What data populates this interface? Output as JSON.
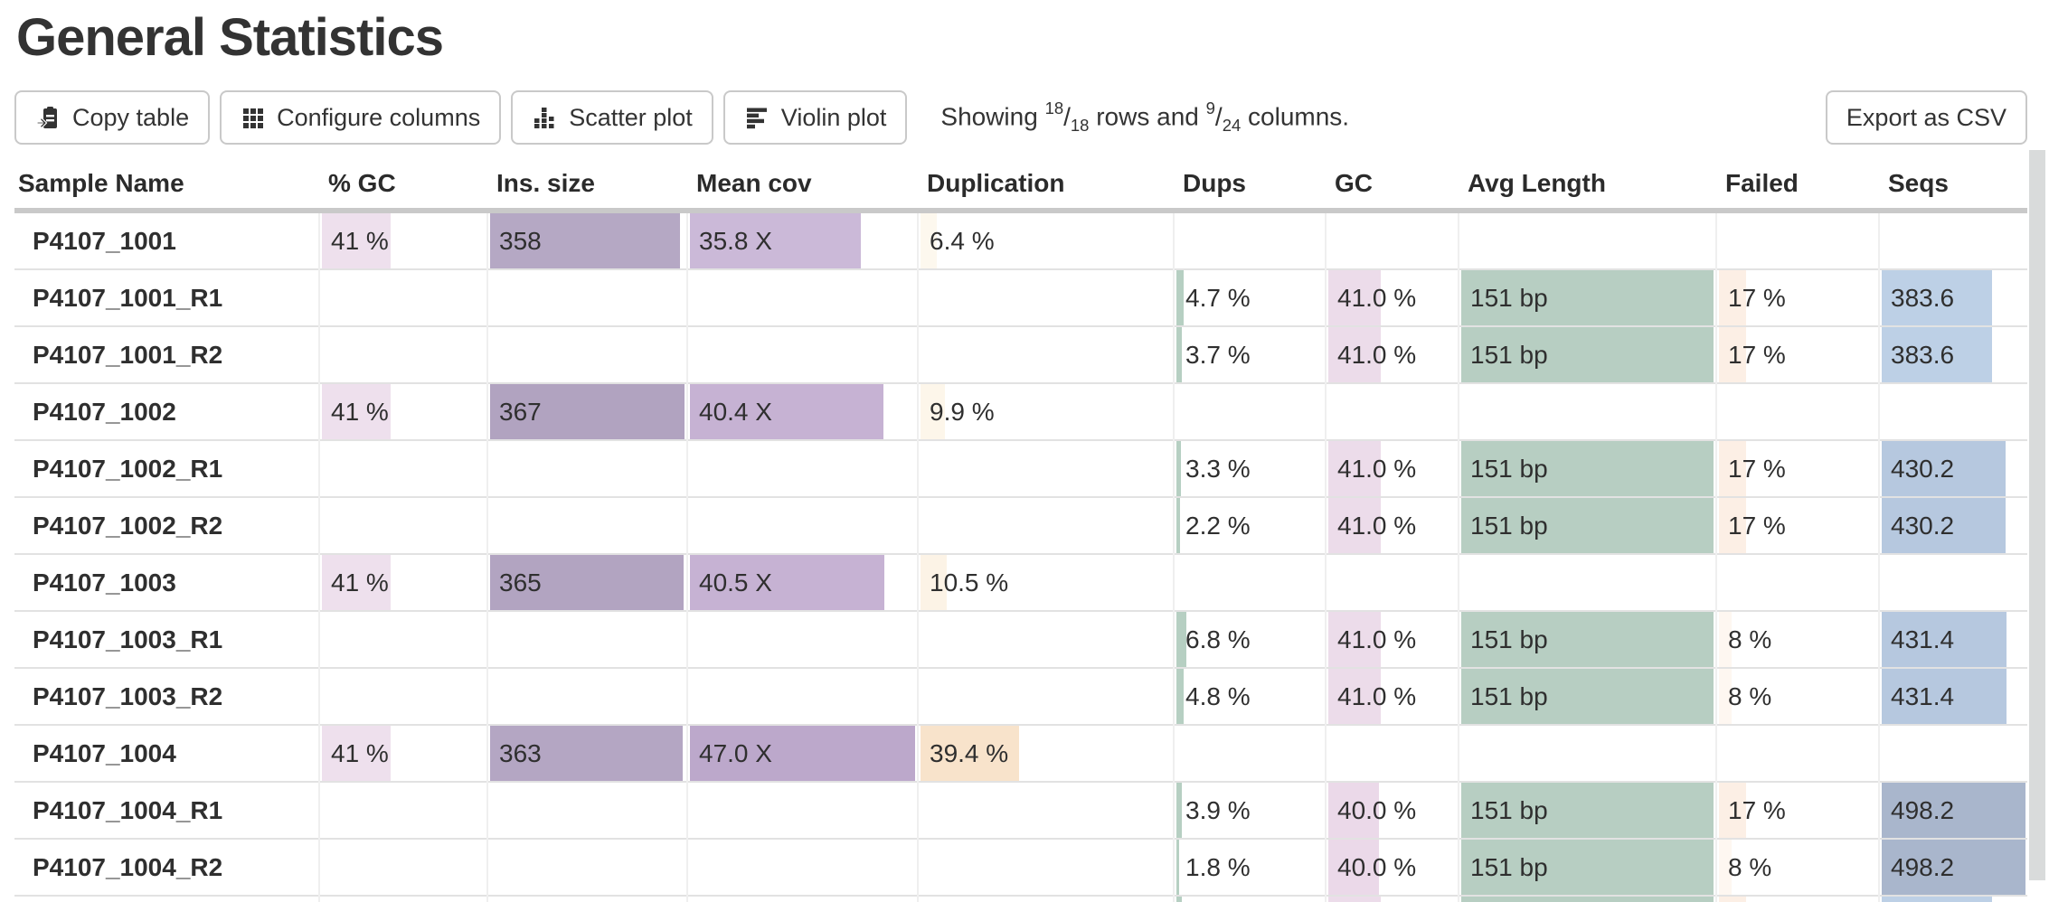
{
  "page": {
    "title": "General Statistics"
  },
  "toolbar": {
    "buttons": [
      {
        "label": "Copy table",
        "icon": "copy-icon"
      },
      {
        "label": "Configure columns",
        "icon": "grid-icon"
      },
      {
        "label": "Scatter plot",
        "icon": "scatter-chart-icon"
      },
      {
        "label": "Violin plot",
        "icon": "violin-chart-icon"
      }
    ],
    "showing": {
      "prefix": "Showing",
      "rows_shown": "18",
      "rows_total": "18",
      "mid": "rows and",
      "cols_shown": "9",
      "cols_total": "24",
      "suffix": "columns."
    },
    "export_label": "Export as CSV"
  },
  "colors": {
    "header_border": "#c9c9c9",
    "row_border": "#e2e2e2",
    "button_border": "#c9c9c9",
    "scrollbar": "#d9dbdb",
    "text": "#2f2f2f"
  },
  "table": {
    "columns": [
      {
        "key": "sample",
        "label": "Sample Name"
      },
      {
        "key": "pct_gc",
        "label": "% GC"
      },
      {
        "key": "ins_size",
        "label": "Ins. size"
      },
      {
        "key": "mean_cov",
        "label": "Mean cov"
      },
      {
        "key": "duplication",
        "label": "Duplication"
      },
      {
        "key": "dups",
        "label": "Dups"
      },
      {
        "key": "gc",
        "label": "GC"
      },
      {
        "key": "avg_length",
        "label": "Avg Length"
      },
      {
        "key": "failed",
        "label": "Failed"
      },
      {
        "key": "seqs",
        "label": "Seqs"
      }
    ],
    "rows": [
      {
        "sample": "P4107_1001",
        "cells": [
          {
            "text": "41 %",
            "bar": 42,
            "color": "#eee0ed"
          },
          {
            "text": "358",
            "bar": 97.5,
            "color": "#b5a8c4"
          },
          {
            "text": "35.8 X",
            "bar": 76,
            "color": "#cbb9d8"
          },
          {
            "text": "6.4 %",
            "bar": 6.4,
            "color": "#fdf8ee"
          },
          null,
          null,
          null,
          null,
          null
        ]
      },
      {
        "sample": "P4107_1001_R1",
        "cells": [
          null,
          null,
          null,
          null,
          {
            "text": "4.7 %",
            "bar": 4.7,
            "color": "#b6cfc2"
          },
          {
            "text": "41.0 %",
            "bar": 41,
            "color": "#ecdcea"
          },
          {
            "text": "151 bp",
            "bar": 100,
            "color": "#b7cec2"
          },
          {
            "text": "17 %",
            "bar": 17,
            "color": "#fcefe5"
          },
          {
            "text": "383.6",
            "bar": 77,
            "color": "#bdd0e6"
          }
        ]
      },
      {
        "sample": "P4107_1001_R2",
        "cells": [
          null,
          null,
          null,
          null,
          {
            "text": "3.7 %",
            "bar": 3.7,
            "color": "#b6cfc2"
          },
          {
            "text": "41.0 %",
            "bar": 41,
            "color": "#ecdcea"
          },
          {
            "text": "151 bp",
            "bar": 100,
            "color": "#b7cec2"
          },
          {
            "text": "17 %",
            "bar": 17,
            "color": "#fcefe5"
          },
          {
            "text": "383.6",
            "bar": 77,
            "color": "#bdd0e6"
          }
        ]
      },
      {
        "sample": "P4107_1002",
        "cells": [
          {
            "text": "41 %",
            "bar": 42,
            "color": "#eee0ed"
          },
          {
            "text": "367",
            "bar": 100,
            "color": "#b1a3c0"
          },
          {
            "text": "40.4 X",
            "bar": 86,
            "color": "#c6b2d3"
          },
          {
            "text": "9.9 %",
            "bar": 9.9,
            "color": "#fdf6ea"
          },
          null,
          null,
          null,
          null,
          null
        ]
      },
      {
        "sample": "P4107_1002_R1",
        "cells": [
          null,
          null,
          null,
          null,
          {
            "text": "3.3 %",
            "bar": 3.3,
            "color": "#b6cfc2"
          },
          {
            "text": "41.0 %",
            "bar": 41,
            "color": "#ecdcea"
          },
          {
            "text": "151 bp",
            "bar": 100,
            "color": "#b7cec2"
          },
          {
            "text": "17 %",
            "bar": 17,
            "color": "#fcefe5"
          },
          {
            "text": "430.2",
            "bar": 86.4,
            "color": "#b6c8df"
          }
        ]
      },
      {
        "sample": "P4107_1002_R2",
        "cells": [
          null,
          null,
          null,
          null,
          {
            "text": "2.2 %",
            "bar": 2.2,
            "color": "#b6cfc2"
          },
          {
            "text": "41.0 %",
            "bar": 41,
            "color": "#ecdcea"
          },
          {
            "text": "151 bp",
            "bar": 100,
            "color": "#b7cec2"
          },
          {
            "text": "17 %",
            "bar": 17,
            "color": "#fcefe5"
          },
          {
            "text": "430.2",
            "bar": 86.4,
            "color": "#b6c8df"
          }
        ]
      },
      {
        "sample": "P4107_1003",
        "cells": [
          {
            "text": "41 %",
            "bar": 42,
            "color": "#eee0ed"
          },
          {
            "text": "365",
            "bar": 99.5,
            "color": "#b2a4c1"
          },
          {
            "text": "40.5 X",
            "bar": 86.2,
            "color": "#c6b2d3"
          },
          {
            "text": "10.5 %",
            "bar": 10.5,
            "color": "#fcf3e6"
          },
          null,
          null,
          null,
          null,
          null
        ]
      },
      {
        "sample": "P4107_1003_R1",
        "cells": [
          null,
          null,
          null,
          null,
          {
            "text": "6.8 %",
            "bar": 6.8,
            "color": "#b6cfc2"
          },
          {
            "text": "41.0 %",
            "bar": 41,
            "color": "#ecdcea"
          },
          {
            "text": "151 bp",
            "bar": 100,
            "color": "#b7cec2"
          },
          {
            "text": "8 %",
            "bar": 8,
            "color": "#fef7f1"
          },
          {
            "text": "431.4",
            "bar": 86.6,
            "color": "#b6c8df"
          }
        ]
      },
      {
        "sample": "P4107_1003_R2",
        "cells": [
          null,
          null,
          null,
          null,
          {
            "text": "4.8 %",
            "bar": 4.8,
            "color": "#b6cfc2"
          },
          {
            "text": "41.0 %",
            "bar": 41,
            "color": "#ecdcea"
          },
          {
            "text": "151 bp",
            "bar": 100,
            "color": "#b7cec2"
          },
          {
            "text": "8 %",
            "bar": 8,
            "color": "#fef7f1"
          },
          {
            "text": "431.4",
            "bar": 86.6,
            "color": "#b6c8df"
          }
        ]
      },
      {
        "sample": "P4107_1004",
        "cells": [
          {
            "text": "41 %",
            "bar": 42,
            "color": "#eee0ed"
          },
          {
            "text": "363",
            "bar": 98.9,
            "color": "#b4a6c3"
          },
          {
            "text": "47.0 X",
            "bar": 100,
            "color": "#bca8cb"
          },
          {
            "text": "39.4 %",
            "bar": 39.4,
            "color": "#f8e3cb"
          },
          null,
          null,
          null,
          null,
          null
        ]
      },
      {
        "sample": "P4107_1004_R1",
        "cells": [
          null,
          null,
          null,
          null,
          {
            "text": "3.9 %",
            "bar": 3.9,
            "color": "#b6cfc2"
          },
          {
            "text": "40.0 %",
            "bar": 40,
            "color": "#ebd9e9"
          },
          {
            "text": "151 bp",
            "bar": 100,
            "color": "#b7cec2"
          },
          {
            "text": "17 %",
            "bar": 17,
            "color": "#fcefe5"
          },
          {
            "text": "498.2",
            "bar": 100,
            "color": "#a9b6cc"
          }
        ]
      },
      {
        "sample": "P4107_1004_R2",
        "cells": [
          null,
          null,
          null,
          null,
          {
            "text": "1.8 %",
            "bar": 1.8,
            "color": "#b6cfc2"
          },
          {
            "text": "40.0 %",
            "bar": 40,
            "color": "#ebd9e9"
          },
          {
            "text": "151 bp",
            "bar": 100,
            "color": "#b7cec2"
          },
          {
            "text": "8 %",
            "bar": 8,
            "color": "#fef7f1"
          },
          {
            "text": "498.2",
            "bar": 100,
            "color": "#a9b6cc"
          }
        ]
      }
    ],
    "partial_row": {
      "sample": "",
      "cells": [
        null,
        null,
        null,
        null,
        {
          "text": "",
          "bar": 4,
          "color": "#b6cfc2"
        },
        {
          "text": "",
          "bar": 41,
          "color": "#ecdcea"
        },
        {
          "text": "",
          "bar": 100,
          "color": "#b7cec2"
        },
        {
          "text": "",
          "bar": 17,
          "color": "#fcefe5"
        },
        {
          "text": "",
          "bar": 77,
          "color": "#bdd0e6"
        }
      ]
    }
  }
}
